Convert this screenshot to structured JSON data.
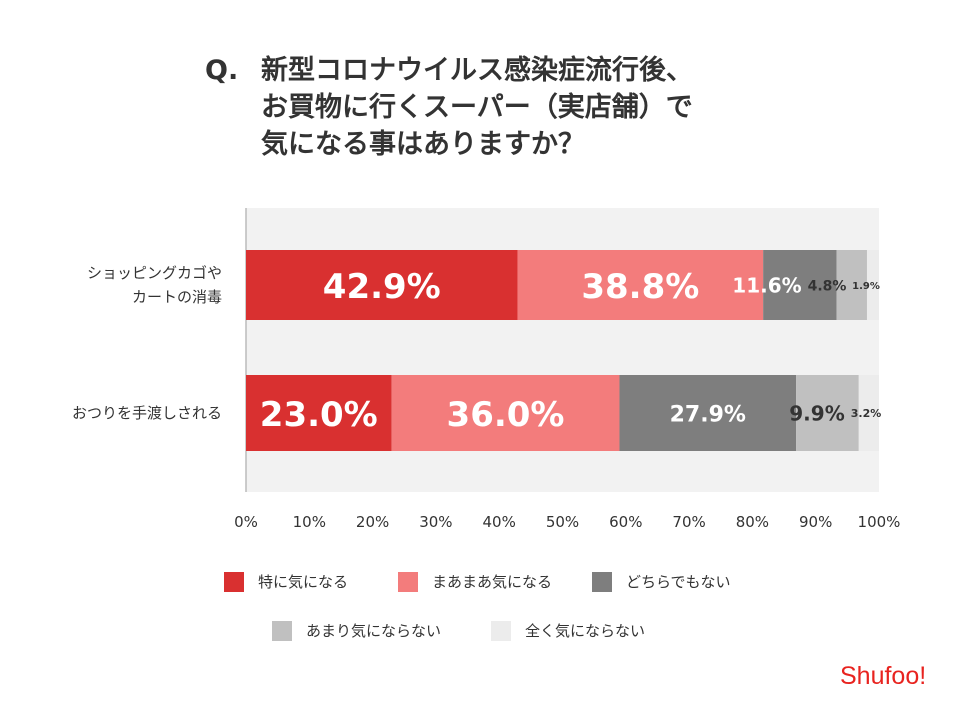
{
  "title": {
    "q": "Q.",
    "text": "新型コロナウイルス感染症流行後、\nお買物に行くスーパー（実店舗）で\n気になる事はありますか？"
  },
  "logo": "Shufoo!",
  "chart_data": {
    "type": "bar",
    "stacked": true,
    "orientation": "horizontal",
    "categories": [
      "ショッピングカゴや\nカートの消毒",
      "おつりを手渡しされる"
    ],
    "series": [
      {
        "name": "特に気になる",
        "color": "#d93030",
        "values": [
          42.9,
          23.0
        ]
      },
      {
        "name": "まあまあ気になる",
        "color": "#f37c7c",
        "values": [
          38.8,
          36.0
        ]
      },
      {
        "name": "どちらでもない",
        "color": "#7e7e7e",
        "values": [
          11.6,
          27.9
        ]
      },
      {
        "name": "あまり気にならない",
        "color": "#c0c0c0",
        "values": [
          4.8,
          9.9
        ]
      },
      {
        "name": "全く気にならない",
        "color": "#ececec",
        "values": [
          1.9,
          3.2
        ]
      }
    ],
    "labels": [
      [
        "42.9%",
        "38.8%",
        "11.6%",
        "4.8%",
        "1.9%"
      ],
      [
        "23.0%",
        "36.0%",
        "27.9%",
        "9.9%",
        "3.2%"
      ]
    ],
    "xticks": [
      "0%",
      "10%",
      "20%",
      "30%",
      "40%",
      "50%",
      "60%",
      "70%",
      "80%",
      "90%",
      "100%"
    ],
    "xlim": [
      0,
      100
    ],
    "legend": "bottom"
  }
}
